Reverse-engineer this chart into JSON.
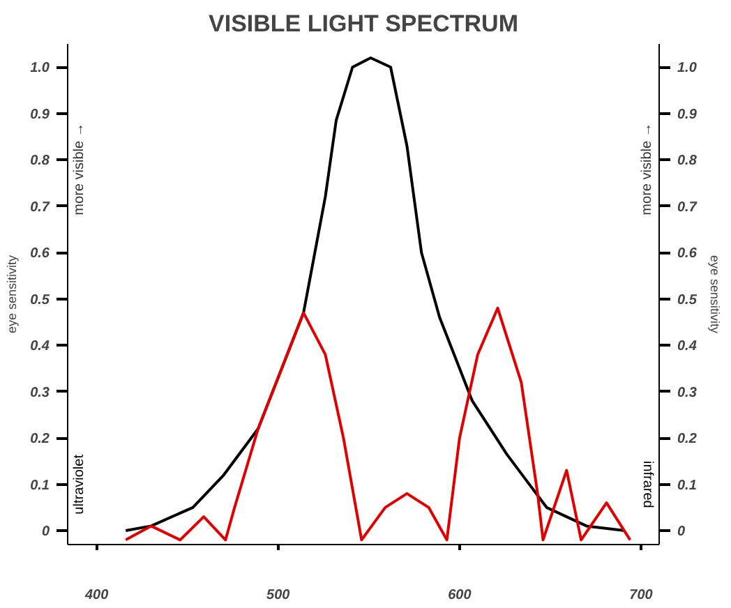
{
  "chart_data": {
    "type": "line",
    "title": "VISIBLE LIGHT SPECTRUM",
    "ylabel": "eye sensitivity",
    "y2label": "eye sensitivity",
    "annotations": [
      "more visible →",
      "more visible →",
      "ultraviolet",
      "infrared"
    ],
    "xlim": [
      384,
      710
    ],
    "xticks": [
      400,
      500,
      600,
      700
    ],
    "ylim": [
      -0.03,
      1.05
    ],
    "yticks": [
      0,
      0.1,
      0.2,
      0.3,
      0.4,
      0.5,
      0.6,
      0.7,
      0.8,
      0.9,
      {
        "value": 1.0,
        "label": "1.0"
      }
    ],
    "y2lim": [
      -0.03,
      1.05
    ],
    "y2ticks": [
      0,
      0.1,
      0.2,
      0.3,
      0.4,
      0.5,
      0.6,
      0.7,
      0.8,
      0.9,
      {
        "value": 1.0,
        "label": "1.0"
      }
    ],
    "grid": false,
    "series": [
      {
        "color": "#000000",
        "x": [
          416,
          430,
          453,
          470,
          489,
          514,
          526,
          532,
          541,
          551,
          562,
          571,
          579,
          589,
          607,
          626,
          648,
          670,
          691
        ],
        "values": [
          0.0,
          0.01,
          0.05,
          0.12,
          0.22,
          0.47,
          0.72,
          0.885,
          1.0,
          1.02,
          1.0,
          0.83,
          0.6,
          0.46,
          0.28,
          0.165,
          0.05,
          0.01,
          0.0
        ]
      },
      {
        "color": "#e00000",
        "x": [
          416,
          430,
          446,
          459,
          471,
          476,
          489,
          514,
          526,
          536,
          546,
          559,
          571,
          583,
          593,
          600,
          610,
          621,
          634,
          643,
          646,
          659,
          667,
          681,
          694
        ],
        "values": [
          -0.02,
          0.01,
          -0.02,
          0.03,
          -0.02,
          0.05,
          0.22,
          0.47,
          0.38,
          0.2,
          -0.02,
          0.05,
          0.08,
          0.05,
          -0.02,
          0.2,
          0.38,
          0.48,
          0.32,
          0.08,
          -0.02,
          0.13,
          -0.02,
          0.06,
          -0.02
        ]
      }
    ]
  }
}
